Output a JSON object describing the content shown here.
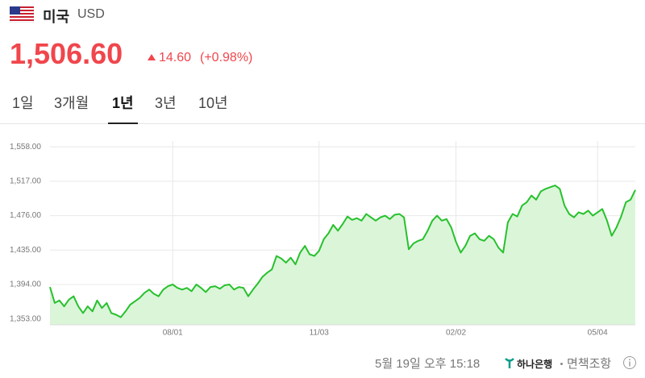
{
  "header": {
    "country": "미국",
    "currency": "USD",
    "price": "1,506.60",
    "change": "14.60",
    "change_pct": "(+0.98%)"
  },
  "tabs": {
    "items": [
      "1일",
      "3개월",
      "1년",
      "3년",
      "10년"
    ],
    "selected": 2
  },
  "chart_data": {
    "type": "line",
    "categories": [
      null,
      null,
      null,
      null,
      null,
      null,
      null,
      null,
      null,
      null,
      null,
      null,
      null,
      null,
      null,
      null,
      null,
      null,
      null,
      null,
      null,
      null,
      null,
      null,
      null,
      null,
      "08/01",
      null,
      null,
      null,
      null,
      null,
      null,
      null,
      null,
      null,
      null,
      null,
      null,
      null,
      null,
      null,
      null,
      null,
      null,
      null,
      null,
      null,
      null,
      null,
      null,
      null,
      null,
      null,
      null,
      null,
      null,
      "11/03",
      null,
      null,
      null,
      null,
      null,
      null,
      null,
      null,
      null,
      null,
      null,
      null,
      null,
      null,
      null,
      null,
      null,
      null,
      null,
      null,
      null,
      null,
      null,
      null,
      null,
      null,
      null,
      null,
      "02/02",
      null,
      null,
      null,
      null,
      null,
      null,
      null,
      null,
      null,
      null,
      null,
      null,
      null,
      null,
      null,
      null,
      null,
      null,
      null,
      null,
      null,
      null,
      null,
      null,
      null,
      null,
      null,
      null,
      null,
      "05/04",
      null,
      null,
      null,
      null,
      null,
      null,
      null,
      null
    ],
    "series": [
      {
        "name": "USD",
        "color": "#27c12d",
        "fill": "#dbf5d9",
        "values": [
          1391,
          1372,
          1375,
          1368,
          1376,
          1380,
          1368,
          1360,
          1368,
          1362,
          1375,
          1366,
          1372,
          1360,
          1358,
          1355,
          1362,
          1370,
          1374,
          1378,
          1384,
          1388,
          1383,
          1380,
          1388,
          1392,
          1394,
          1390,
          1388,
          1390,
          1386,
          1394,
          1390,
          1385,
          1391,
          1392,
          1389,
          1393,
          1394,
          1388,
          1391,
          1390,
          1380,
          1388,
          1395,
          1403,
          1408,
          1412,
          1428,
          1425,
          1420,
          1426,
          1418,
          1432,
          1440,
          1430,
          1428,
          1434,
          1448,
          1455,
          1465,
          1458,
          1466,
          1475,
          1471,
          1473,
          1470,
          1478,
          1474,
          1470,
          1474,
          1476,
          1472,
          1477,
          1478,
          1474,
          1436,
          1443,
          1446,
          1448,
          1458,
          1470,
          1476,
          1470,
          1472,
          1462,
          1445,
          1432,
          1440,
          1452,
          1455,
          1448,
          1446,
          1452,
          1448,
          1438,
          1432,
          1468,
          1478,
          1475,
          1488,
          1492,
          1500,
          1495,
          1505,
          1508,
          1510,
          1512,
          1508,
          1488,
          1478,
          1474,
          1480,
          1478,
          1482,
          1476,
          1480,
          1484,
          1470,
          1452,
          1462,
          1475,
          1492,
          1495,
          1506.6
        ]
      }
    ],
    "ylim": [
      1346,
      1562
    ],
    "yticks": [
      {
        "value": 1558,
        "label": "1,558.00"
      },
      {
        "value": 1517,
        "label": "1,517.00"
      },
      {
        "value": 1476,
        "label": "1,476.00"
      },
      {
        "value": 1435,
        "label": "1,435.00"
      },
      {
        "value": 1394,
        "label": "1,394.00"
      },
      {
        "value": 1353,
        "label": "1,353.00"
      }
    ],
    "grid": true
  },
  "footer": {
    "date": "5월 19일 오후 15:18",
    "bank": "하나은행",
    "disclaimer": "면책조항"
  }
}
